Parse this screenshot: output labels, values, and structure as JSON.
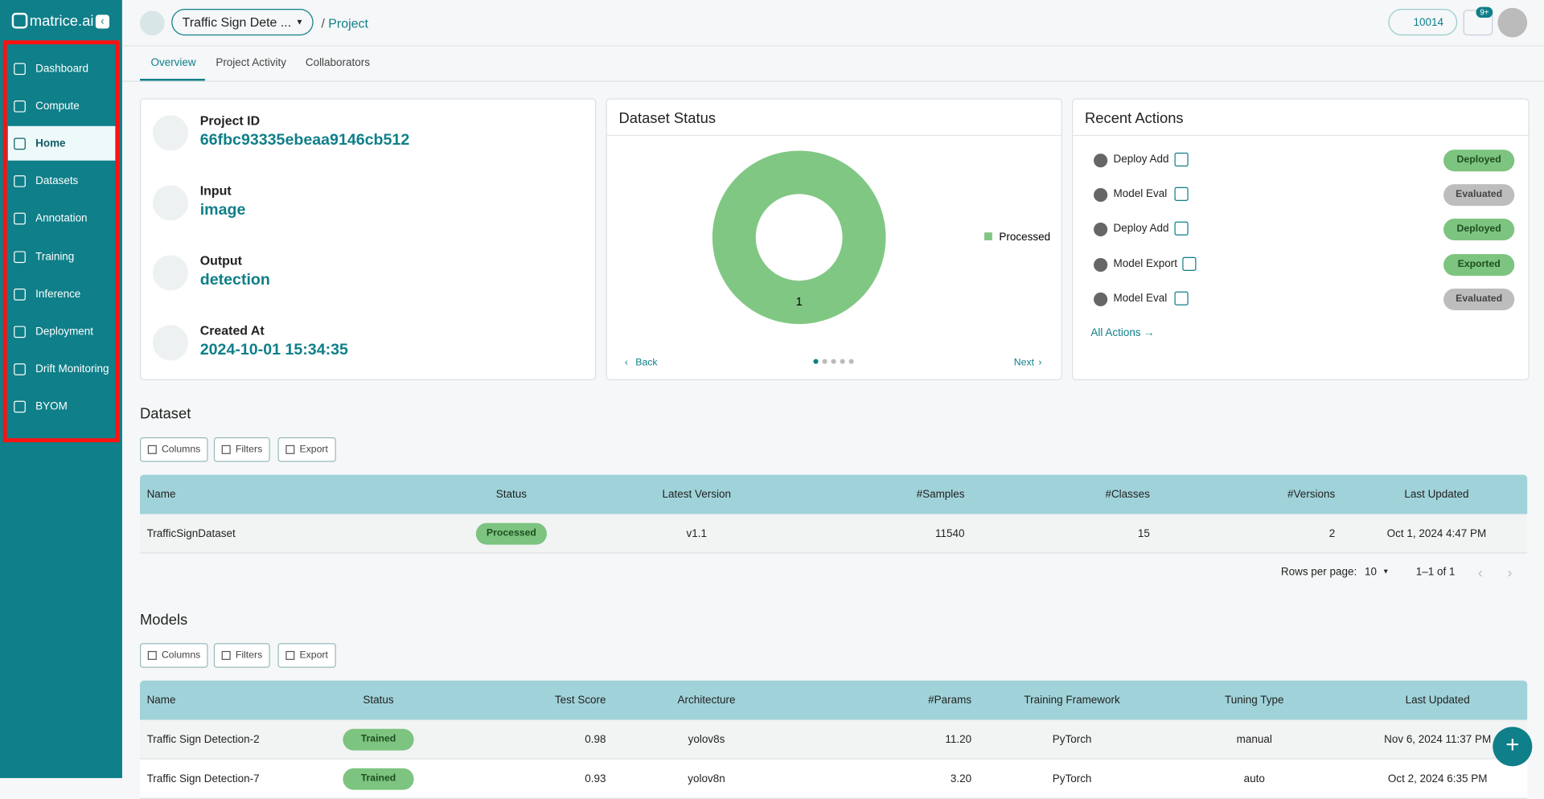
{
  "brand": "matrice.ai",
  "sidebar": [
    "Dashboard",
    "Compute",
    "Home",
    "Datasets",
    "Annotation",
    "Training",
    "Inference",
    "Deployment",
    "Drift Monitoring",
    "BYOM"
  ],
  "header": {
    "project_select": "Traffic Sign Dete ...",
    "breadcrumb": "Project",
    "credits": "10014",
    "notifications": "9+"
  },
  "tabs": [
    "Overview",
    "Project Activity",
    "Collaborators"
  ],
  "info": [
    {
      "label": "Project ID",
      "value": "66fbc93335ebeaa9146cb512"
    },
    {
      "label": "Input",
      "value": "image"
    },
    {
      "label": "Output",
      "value": "detection"
    },
    {
      "label": "Created At",
      "value": "2024-10-01 15:34:35"
    }
  ],
  "dataset_status": {
    "title": "Dataset Status",
    "legend": "Processed",
    "slice_label": "1",
    "back": "Back",
    "next": "Next"
  },
  "recent_actions": {
    "title": "Recent Actions",
    "items": [
      {
        "name": "Deploy Add",
        "status": "Deployed"
      },
      {
        "name": "Model Eval",
        "status": "Evaluated"
      },
      {
        "name": "Deploy Add",
        "status": "Deployed"
      },
      {
        "name": "Model Export",
        "status": "Exported"
      },
      {
        "name": "Model Eval",
        "status": "Evaluated"
      }
    ],
    "all": "All Actions"
  },
  "dataset": {
    "title": "Dataset",
    "toolbar": [
      "Columns",
      "Filters",
      "Export"
    ],
    "columns": [
      "Name",
      "Status",
      "Latest Version",
      "#Samples",
      "#Classes",
      "#Versions",
      "Last Updated"
    ],
    "rows": [
      [
        "TrafficSignDataset",
        "Processed",
        "v1.1",
        "11540",
        "15",
        "2",
        "Oct 1, 2024 4:47 PM"
      ]
    ],
    "rows_per_page_label": "Rows per page:",
    "rows_per_page": "10",
    "range": "1–1 of 1"
  },
  "models": {
    "title": "Models",
    "toolbar": [
      "Columns",
      "Filters",
      "Export"
    ],
    "columns": [
      "Name",
      "Status",
      "Test Score",
      "Architecture",
      "#Params",
      "Training Framework",
      "Tuning Type",
      "Last Updated"
    ],
    "rows": [
      [
        "Traffic Sign Detection-2",
        "Trained",
        "0.98",
        "yolov8s",
        "11.20",
        "PyTorch",
        "manual",
        "Nov 6, 2024 11:37 PM"
      ],
      [
        "Traffic Sign Detection-7",
        "Trained",
        "0.93",
        "yolov8n",
        "3.20",
        "PyTorch",
        "auto",
        "Oct 2, 2024 6:35 PM"
      ]
    ]
  }
}
